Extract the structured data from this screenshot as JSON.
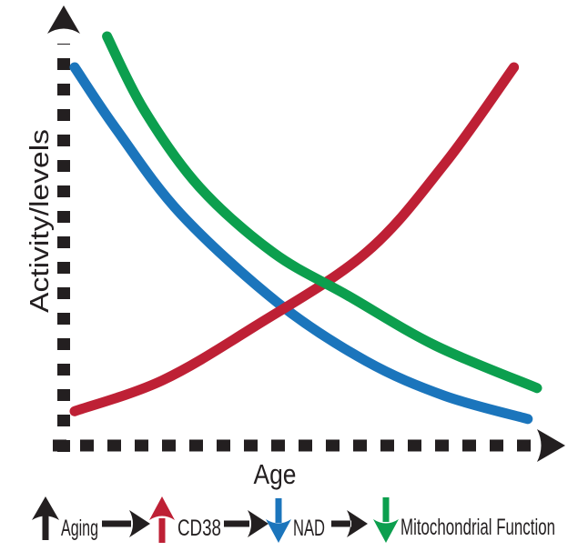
{
  "figure": {
    "background": "#ffffff",
    "ink_color": "#231f20"
  },
  "chart_data": {
    "type": "line",
    "title": "",
    "xlabel": "Age",
    "ylabel": "Activity/levels",
    "grid": false,
    "x_axis": {
      "style": "dashed line with solid arrowhead",
      "ticks": "none"
    },
    "y_axis": {
      "style": "dashed line with solid arrowhead",
      "ticks": "none"
    },
    "legend_position": "none",
    "value_units": "conceptual, normalized 0-100 (no numeric ticks shown)",
    "series": [
      {
        "id": "nad",
        "name": "NAD",
        "color": "#1b75bc",
        "trend": "decreasing with age (exponential decay)",
        "points": [
          [
            0,
            92
          ],
          [
            9,
            76
          ],
          [
            23,
            54
          ],
          [
            44,
            31
          ],
          [
            63,
            16
          ],
          [
            80,
            7
          ],
          [
            98,
            1
          ]
        ]
      },
      {
        "id": "cd38",
        "name": "CD38",
        "color": "#be2035",
        "trend": "increasing with age (exponential rise)",
        "points": [
          [
            0,
            3
          ],
          [
            19,
            11
          ],
          [
            39,
            25
          ],
          [
            63,
            44
          ],
          [
            80,
            67
          ],
          [
            95,
            92
          ]
        ]
      },
      {
        "id": "mito",
        "name": "Mitochondrial Function",
        "color": "#0c9f4e",
        "trend": "decreasing with age (exponential decay)",
        "points": [
          [
            7,
            100
          ],
          [
            15,
            81
          ],
          [
            27,
            61
          ],
          [
            43,
            44
          ],
          [
            59,
            33
          ],
          [
            78,
            20
          ],
          [
            100,
            9
          ]
        ]
      }
    ]
  },
  "flow": {
    "connector_style": "right-arrow",
    "steps": [
      {
        "label": "Aging",
        "arrow": "up",
        "color": "#231f20"
      },
      {
        "label": "CD38",
        "arrow": "up",
        "color": "#be2035"
      },
      {
        "label": "NAD",
        "arrow": "down",
        "color": "#1b75bc"
      },
      {
        "label": "Mitochondrial Function",
        "arrow": "down",
        "color": "#0c9f4e"
      }
    ]
  }
}
